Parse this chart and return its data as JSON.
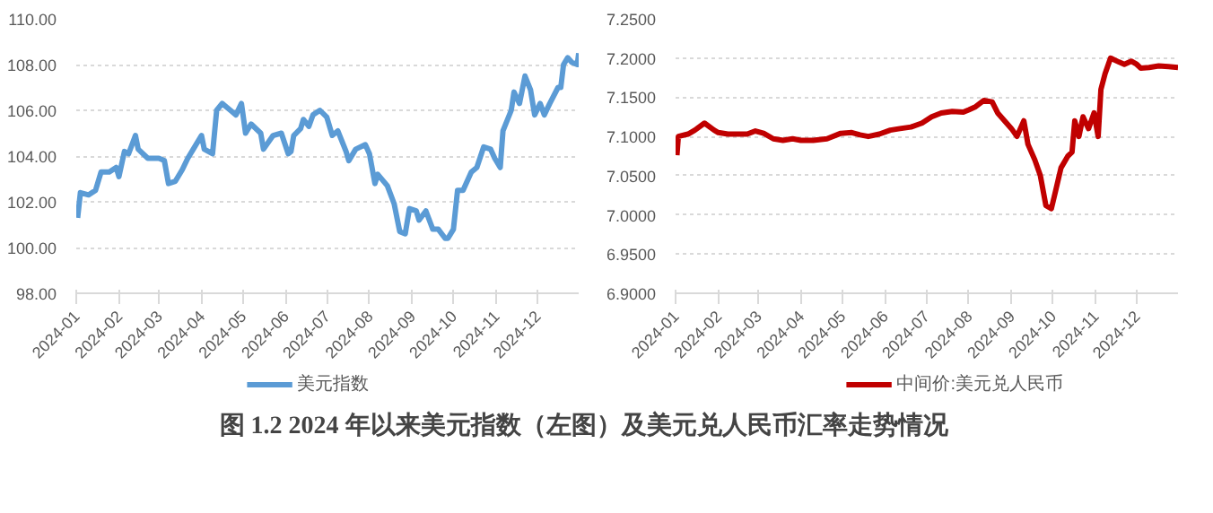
{
  "chart_data": [
    {
      "type": "line",
      "legend": "bottom",
      "grid": "y",
      "marker": "none",
      "line_style": "solid",
      "xlim": [
        "2024-01-01",
        "2024-12-31"
      ],
      "xticks": [
        {
          "value": "2024-01-01",
          "label": "2024-01"
        },
        {
          "value": "2024-02-01",
          "label": "2024-02"
        },
        {
          "value": "2024-03-01",
          "label": "2024-03"
        },
        {
          "value": "2024-04-01",
          "label": "2024-04"
        },
        {
          "value": "2024-05-01",
          "label": "2024-05"
        },
        {
          "value": "2024-06-01",
          "label": "2024-06"
        },
        {
          "value": "2024-07-01",
          "label": "2024-07"
        },
        {
          "value": "2024-08-01",
          "label": "2024-08"
        },
        {
          "value": "2024-09-01",
          "label": "2024-09"
        },
        {
          "value": "2024-10-01",
          "label": "2024-10"
        },
        {
          "value": "2024-11-01",
          "label": "2024-11"
        },
        {
          "value": "2024-12-01",
          "label": "2024-12"
        }
      ],
      "ylim": [
        98,
        110
      ],
      "yticks": [
        {
          "value": 98,
          "label": "98.00"
        },
        {
          "value": 100,
          "label": "100.00"
        },
        {
          "value": 102,
          "label": "102.00"
        },
        {
          "value": 104,
          "label": "104.00"
        },
        {
          "value": 106,
          "label": "106.00"
        },
        {
          "value": 108,
          "label": "108.00"
        },
        {
          "value": 110,
          "label": "110.00"
        }
      ],
      "x": [
        "2024-01-02",
        "2024-01-04",
        "2024-01-10",
        "2024-01-15",
        "2024-01-19",
        "2024-01-25",
        "2024-01-30",
        "2024-02-01",
        "2024-02-05",
        "2024-02-08",
        "2024-02-13",
        "2024-02-15",
        "2024-02-22",
        "2024-03-01",
        "2024-03-05",
        "2024-03-08",
        "2024-03-13",
        "2024-03-18",
        "2024-03-22",
        "2024-03-26",
        "2024-04-01",
        "2024-04-03",
        "2024-04-09",
        "2024-04-12",
        "2024-04-16",
        "2024-04-22",
        "2024-04-26",
        "2024-04-30",
        "2024-05-03",
        "2024-05-07",
        "2024-05-14",
        "2024-05-16",
        "2024-05-23",
        "2024-05-29",
        "2024-06-03",
        "2024-06-05",
        "2024-06-07",
        "2024-06-12",
        "2024-06-14",
        "2024-06-18",
        "2024-06-21",
        "2024-06-26",
        "2024-07-01",
        "2024-07-05",
        "2024-07-09",
        "2024-07-15",
        "2024-07-17",
        "2024-07-22",
        "2024-07-29",
        "2024-08-01",
        "2024-08-05",
        "2024-08-07",
        "2024-08-14",
        "2024-08-19",
        "2024-08-23",
        "2024-08-27",
        "2024-08-30",
        "2024-09-04",
        "2024-09-06",
        "2024-09-11",
        "2024-09-16",
        "2024-09-20",
        "2024-09-25",
        "2024-09-27",
        "2024-10-01",
        "2024-10-04",
        "2024-10-08",
        "2024-10-14",
        "2024-10-18",
        "2024-10-23",
        "2024-10-28",
        "2024-10-31",
        "2024-11-04",
        "2024-11-06",
        "2024-11-12",
        "2024-11-14",
        "2024-11-18",
        "2024-11-22",
        "2024-11-26",
        "2024-11-29",
        "2024-12-03",
        "2024-12-06",
        "2024-12-10",
        "2024-12-16",
        "2024-12-18",
        "2024-12-20",
        "2024-12-23",
        "2024-12-26",
        "2024-12-30",
        "2024-12-31"
      ],
      "series": [
        {
          "name": "美元指数",
          "color": "#5b9bd5",
          "values": [
            101.3,
            102.4,
            102.3,
            102.5,
            103.3,
            103.3,
            103.5,
            103.1,
            104.2,
            104.1,
            104.9,
            104.3,
            103.9,
            103.9,
            103.8,
            102.8,
            102.9,
            103.4,
            103.9,
            104.3,
            104.9,
            104.3,
            104.1,
            106.0,
            106.3,
            106.0,
            105.8,
            106.3,
            105.0,
            105.4,
            105.0,
            104.3,
            104.9,
            105.0,
            104.1,
            104.2,
            104.9,
            105.2,
            105.6,
            105.3,
            105.8,
            106.0,
            105.7,
            104.9,
            105.1,
            104.2,
            103.8,
            104.3,
            104.5,
            104.1,
            102.8,
            103.2,
            102.7,
            101.9,
            100.7,
            100.6,
            101.7,
            101.6,
            101.2,
            101.6,
            100.8,
            100.8,
            100.4,
            100.4,
            100.8,
            102.5,
            102.5,
            103.3,
            103.5,
            104.4,
            104.3,
            103.9,
            103.5,
            105.1,
            106.0,
            106.8,
            106.3,
            107.5,
            106.9,
            105.8,
            106.3,
            105.8,
            106.3,
            107.0,
            107.0,
            108.0,
            108.3,
            108.1,
            108.0,
            108.5
          ]
        }
      ]
    },
    {
      "type": "line",
      "legend": "bottom",
      "grid": "y",
      "marker": "none",
      "line_style": "solid",
      "title": "图 1.2    2024 年以来美元指数（左图）及美元兑人民币汇率走势情况",
      "xlim": [
        "2024-01-01",
        "2024-12-31"
      ],
      "xticks": [
        {
          "value": "2024-01-01",
          "label": "2024-01"
        },
        {
          "value": "2024-02-01",
          "label": "2024-02"
        },
        {
          "value": "2024-03-01",
          "label": "2024-03"
        },
        {
          "value": "2024-04-01",
          "label": "2024-04"
        },
        {
          "value": "2024-05-01",
          "label": "2024-05"
        },
        {
          "value": "2024-06-01",
          "label": "2024-06"
        },
        {
          "value": "2024-07-01",
          "label": "2024-07"
        },
        {
          "value": "2024-08-01",
          "label": "2024-08"
        },
        {
          "value": "2024-09-01",
          "label": "2024-09"
        },
        {
          "value": "2024-10-01",
          "label": "2024-10"
        },
        {
          "value": "2024-11-01",
          "label": "2024-11"
        },
        {
          "value": "2024-12-01",
          "label": "2024-12"
        }
      ],
      "ylim": [
        6.9,
        7.25
      ],
      "yticks": [
        {
          "value": 6.9,
          "label": "6.9000"
        },
        {
          "value": 6.95,
          "label": "6.9500"
        },
        {
          "value": 7.0,
          "label": "7.0000"
        },
        {
          "value": 7.05,
          "label": "7.0500"
        },
        {
          "value": 7.1,
          "label": "7.1000"
        },
        {
          "value": 7.15,
          "label": "7.1500"
        },
        {
          "value": 7.2,
          "label": "7.2000"
        },
        {
          "value": 7.25,
          "label": "7.2500"
        }
      ],
      "x": [
        "2024-01-02",
        "2024-01-03",
        "2024-01-10",
        "2024-01-15",
        "2024-01-22",
        "2024-01-29",
        "2024-02-01",
        "2024-02-08",
        "2024-02-15",
        "2024-02-22",
        "2024-02-28",
        "2024-03-05",
        "2024-03-12",
        "2024-03-19",
        "2024-03-26",
        "2024-04-01",
        "2024-04-10",
        "2024-04-20",
        "2024-04-30",
        "2024-05-08",
        "2024-05-14",
        "2024-05-20",
        "2024-05-28",
        "2024-06-05",
        "2024-06-12",
        "2024-06-20",
        "2024-06-28",
        "2024-07-05",
        "2024-07-12",
        "2024-07-20",
        "2024-07-28",
        "2024-08-01",
        "2024-08-06",
        "2024-08-12",
        "2024-08-18",
        "2024-08-22",
        "2024-08-27",
        "2024-09-01",
        "2024-09-05",
        "2024-09-10",
        "2024-09-13",
        "2024-09-18",
        "2024-09-22",
        "2024-09-26",
        "2024-09-30",
        "2024-10-03",
        "2024-10-07",
        "2024-10-12",
        "2024-10-15",
        "2024-10-17",
        "2024-10-20",
        "2024-10-23",
        "2024-10-27",
        "2024-10-31",
        "2024-11-03",
        "2024-11-05",
        "2024-11-08",
        "2024-11-12",
        "2024-11-18",
        "2024-11-22",
        "2024-11-27",
        "2024-12-01",
        "2024-12-04",
        "2024-12-10",
        "2024-12-17",
        "2024-12-24",
        "2024-12-31"
      ],
      "series": [
        {
          "name": "中间价:美元兑人民币",
          "color": "#c00000",
          "values": [
            7.076,
            7.1,
            7.103,
            7.108,
            7.117,
            7.108,
            7.105,
            7.103,
            7.103,
            7.103,
            7.107,
            7.104,
            7.097,
            7.095,
            7.097,
            7.095,
            7.095,
            7.097,
            7.104,
            7.105,
            7.102,
            7.1,
            7.103,
            7.108,
            7.11,
            7.112,
            7.117,
            7.125,
            7.13,
            7.132,
            7.131,
            7.134,
            7.138,
            7.146,
            7.144,
            7.13,
            7.12,
            7.11,
            7.1,
            7.12,
            7.09,
            7.07,
            7.05,
            7.012,
            7.008,
            7.03,
            7.06,
            7.075,
            7.08,
            7.12,
            7.1,
            7.125,
            7.11,
            7.13,
            7.1,
            7.16,
            7.18,
            7.2,
            7.195,
            7.192,
            7.196,
            7.192,
            7.187,
            7.188,
            7.19,
            7.189,
            7.188
          ]
        }
      ]
    }
  ]
}
